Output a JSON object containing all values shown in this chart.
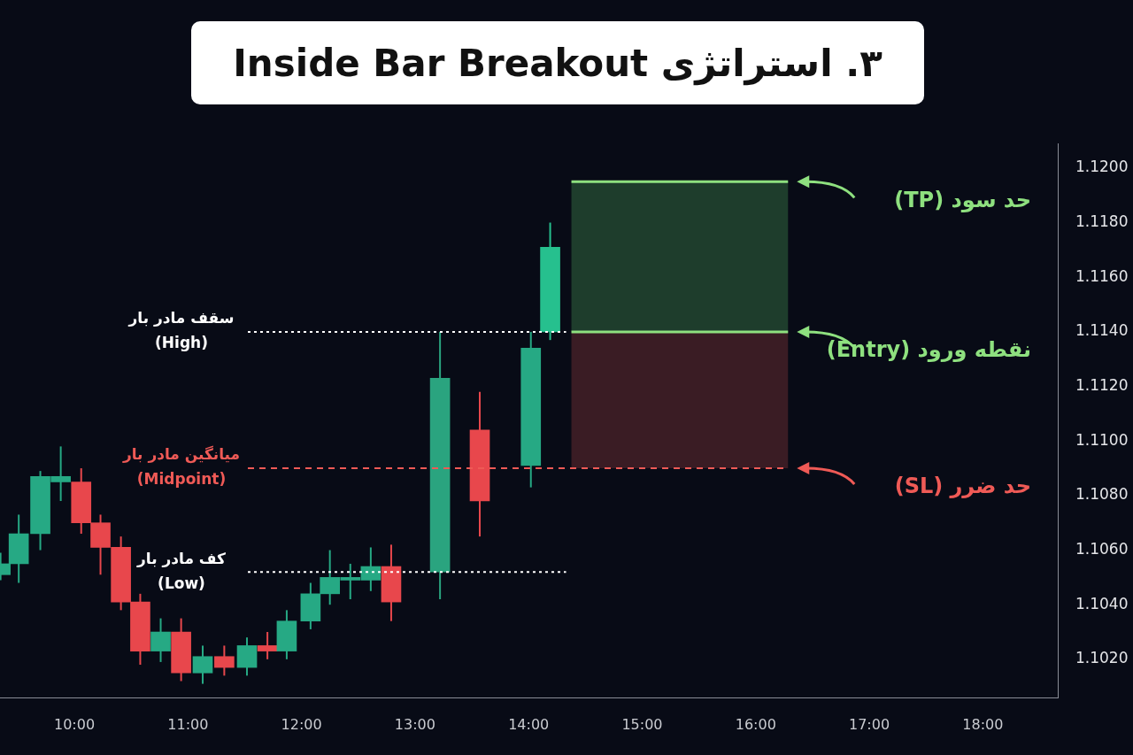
{
  "chart_data": {
    "type": "candlestick",
    "title": "۳. استراتژی Inside Bar Breakout",
    "x": [
      9.35,
      9.51,
      9.7,
      9.88,
      10.06,
      10.23,
      10.41,
      10.58,
      10.76,
      10.94,
      11.13,
      11.32,
      11.52,
      11.7,
      11.87,
      12.08,
      12.25,
      12.43,
      12.61,
      12.79,
      13.22,
      13.57,
      14.02,
      14.19
    ],
    "ohlc": [
      [
        1.1051,
        1.1059,
        1.1049,
        1.1055
      ],
      [
        1.1055,
        1.1073,
        1.1048,
        1.1066
      ],
      [
        1.1066,
        1.1089,
        1.106,
        1.1087
      ],
      [
        1.1085,
        1.1098,
        1.1078,
        1.1087
      ],
      [
        1.1085,
        1.109,
        1.1066,
        1.107
      ],
      [
        1.107,
        1.1073,
        1.1051,
        1.1061
      ],
      [
        1.1061,
        1.1065,
        1.1038,
        1.1041
      ],
      [
        1.1041,
        1.1044,
        1.1018,
        1.1023
      ],
      [
        1.1023,
        1.1035,
        1.1019,
        1.103
      ],
      [
        1.103,
        1.1035,
        1.1012,
        1.1015
      ],
      [
        1.1015,
        1.1025,
        1.1011,
        1.1021
      ],
      [
        1.1021,
        1.1025,
        1.1014,
        1.1017
      ],
      [
        1.1017,
        1.1028,
        1.1014,
        1.1025
      ],
      [
        1.1025,
        1.103,
        1.102,
        1.1023
      ],
      [
        1.1023,
        1.1038,
        1.102,
        1.1034
      ],
      [
        1.1034,
        1.1048,
        1.1031,
        1.1044
      ],
      [
        1.1044,
        1.106,
        1.104,
        1.105
      ],
      [
        1.1049,
        1.1055,
        1.1042,
        1.105
      ],
      [
        1.1049,
        1.1061,
        1.1045,
        1.1054
      ],
      [
        1.1054,
        1.1062,
        1.1034,
        1.1041
      ],
      [
        1.1052,
        1.114,
        1.1042,
        1.1123
      ],
      [
        1.1104,
        1.1118,
        1.1065,
        1.1078
      ],
      [
        1.1091,
        1.114,
        1.1083,
        1.1134
      ],
      [
        1.114,
        1.118,
        1.1137,
        1.1171
      ]
    ],
    "colors": [
      "#26a984",
      "#26a984",
      "#26a984",
      "#26a984",
      "#e8474c",
      "#e8474c",
      "#e8474c",
      "#e8474c",
      "#26a984",
      "#e8474c",
      "#26a984",
      "#e8474c",
      "#26a984",
      "#e8474c",
      "#26a984",
      "#26a984",
      "#26a984",
      "#26a984",
      "#26a984",
      "#e8474c",
      "#2aa47f",
      "#e8474c",
      "#26a984",
      "#26c08e"
    ],
    "xlim": [
      9.345,
      18.66
    ],
    "xticks": [
      {
        "value": 10,
        "label": "10:00"
      },
      {
        "value": 11,
        "label": "11:00"
      },
      {
        "value": 12,
        "label": "12:00"
      },
      {
        "value": 13,
        "label": "13:00"
      },
      {
        "value": 14,
        "label": "14:00"
      },
      {
        "value": 15,
        "label": "15:00"
      },
      {
        "value": 16,
        "label": "16:00"
      },
      {
        "value": 17,
        "label": "17:00"
      },
      {
        "value": 18,
        "label": "18:00"
      }
    ],
    "ylim": [
      1.1006,
      1.1209
    ],
    "yticks": [
      {
        "value": 1.102,
        "label": "1.1020"
      },
      {
        "value": 1.104,
        "label": "1.1040"
      },
      {
        "value": 1.106,
        "label": "1.1060"
      },
      {
        "value": 1.108,
        "label": "1.1080"
      },
      {
        "value": 1.11,
        "label": "1.1100"
      },
      {
        "value": 1.112,
        "label": "1.1120"
      },
      {
        "value": 1.114,
        "label": "1.1140"
      },
      {
        "value": 1.116,
        "label": "1.1160"
      },
      {
        "value": 1.118,
        "label": "1.1180"
      },
      {
        "value": 1.12,
        "label": "1.1200"
      }
    ],
    "grid": false,
    "legend": false,
    "bands": [
      {
        "axis": "y",
        "from": 1.114,
        "to": 1.1195,
        "color": "#1e3d2c"
      },
      {
        "axis": "y",
        "from": 1.109,
        "to": 1.114,
        "color": "#3a1c24"
      }
    ],
    "ref_lines": [
      {
        "axis": "y",
        "value": 1.114,
        "label": "سقف مادر بار\n(High)",
        "color": "#ffffff",
        "line_style": "dotted"
      },
      {
        "axis": "y",
        "value": 1.109,
        "label": "میانگین مادر بار\n(Midpoint)",
        "color": "#ef5a56",
        "line_style": "dashed"
      },
      {
        "axis": "y",
        "value": 1.1052,
        "label": "کف مادر بار\n(Low)",
        "color": "#ffffff",
        "line_style": "dotted"
      },
      {
        "axis": "y",
        "value": 1.1195,
        "label": "حد سود (TP)",
        "color": "#8ee07f",
        "line_style": "solid"
      },
      {
        "axis": "y",
        "value": 1.114,
        "label": "نقطه ورود (Entry)",
        "color": "#8ee07f",
        "line_style": "solid"
      }
    ],
    "annotations": [
      "حد ضرر (SL)"
    ]
  }
}
